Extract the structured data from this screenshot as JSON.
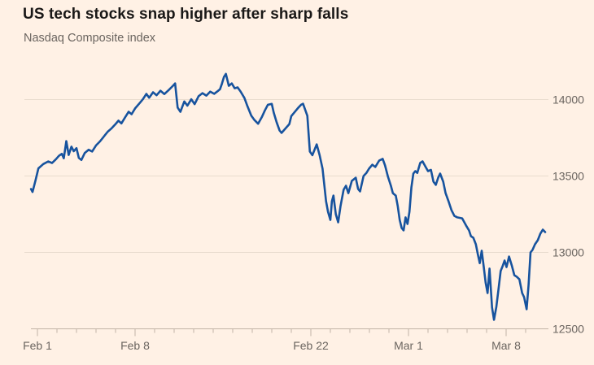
{
  "header": {
    "title": "US tech stocks snap higher after sharp falls",
    "subtitle": "Nasdaq Composite index"
  },
  "colors": {
    "background": "#FFF1E5",
    "line": "#17539E",
    "grid": "#E9DCCE",
    "axis": "#C2B4A6",
    "title_text": "#1A1817",
    "label_text": "#6B6560"
  },
  "chart_data": {
    "type": "line",
    "title": "US tech stocks snap higher after sharp falls",
    "subtitle": "Nasdaq Composite index",
    "legend": "none",
    "grid": "horizontal",
    "x_axis": {
      "unit": "trading-day index from Feb 1",
      "tick_labels": [
        {
          "day": 0,
          "label": "Feb 1"
        },
        {
          "day": 5,
          "label": "Feb 8"
        },
        {
          "day": 14,
          "label": "Feb 22"
        },
        {
          "day": 19,
          "label": "Mar 1"
        },
        {
          "day": 24,
          "label": "Mar 8"
        }
      ],
      "minor_ticks_every_day": 1,
      "day_range": [
        -0.33,
        26
      ]
    },
    "y_axis": {
      "side": "right",
      "ticks": [
        12500,
        13000,
        13500,
        14000
      ],
      "range": [
        12500,
        14200
      ]
    },
    "series": [
      {
        "name": "Nasdaq Composite index",
        "points": [
          [
            -0.33,
            13415
          ],
          [
            -0.25,
            13396
          ],
          [
            -0.1,
            13470
          ],
          [
            0.05,
            13550
          ],
          [
            0.3,
            13578
          ],
          [
            0.55,
            13595
          ],
          [
            0.75,
            13585
          ],
          [
            0.95,
            13610
          ],
          [
            1.1,
            13632
          ],
          [
            1.25,
            13645
          ],
          [
            1.35,
            13616
          ],
          [
            1.48,
            13728
          ],
          [
            1.6,
            13638
          ],
          [
            1.74,
            13692
          ],
          [
            1.86,
            13662
          ],
          [
            2.0,
            13682
          ],
          [
            2.12,
            13618
          ],
          [
            2.25,
            13605
          ],
          [
            2.42,
            13650
          ],
          [
            2.62,
            13672
          ],
          [
            2.8,
            13660
          ],
          [
            3.0,
            13700
          ],
          [
            3.2,
            13726
          ],
          [
            3.4,
            13758
          ],
          [
            3.6,
            13790
          ],
          [
            3.8,
            13812
          ],
          [
            4.0,
            13840
          ],
          [
            4.15,
            13862
          ],
          [
            4.3,
            13844
          ],
          [
            4.5,
            13886
          ],
          [
            4.67,
            13920
          ],
          [
            4.82,
            13904
          ],
          [
            5.0,
            13942
          ],
          [
            5.2,
            13972
          ],
          [
            5.4,
            14002
          ],
          [
            5.58,
            14037
          ],
          [
            5.72,
            14012
          ],
          [
            5.92,
            14048
          ],
          [
            6.1,
            14028
          ],
          [
            6.3,
            14058
          ],
          [
            6.5,
            14036
          ],
          [
            6.72,
            14062
          ],
          [
            6.92,
            14088
          ],
          [
            7.05,
            14106
          ],
          [
            7.18,
            13948
          ],
          [
            7.32,
            13920
          ],
          [
            7.52,
            13988
          ],
          [
            7.68,
            13960
          ],
          [
            7.88,
            14002
          ],
          [
            8.05,
            13970
          ],
          [
            8.25,
            14022
          ],
          [
            8.45,
            14042
          ],
          [
            8.65,
            14026
          ],
          [
            8.85,
            14052
          ],
          [
            9.05,
            14038
          ],
          [
            9.2,
            14052
          ],
          [
            9.35,
            14068
          ],
          [
            9.45,
            14105
          ],
          [
            9.55,
            14148
          ],
          [
            9.65,
            14168
          ],
          [
            9.8,
            14090
          ],
          [
            9.95,
            14106
          ],
          [
            10.1,
            14074
          ],
          [
            10.25,
            14080
          ],
          [
            10.4,
            14053
          ],
          [
            10.6,
            14010
          ],
          [
            10.75,
            13958
          ],
          [
            10.95,
            13895
          ],
          [
            11.1,
            13868
          ],
          [
            11.3,
            13842
          ],
          [
            11.5,
            13888
          ],
          [
            11.65,
            13930
          ],
          [
            11.8,
            13966
          ],
          [
            12.0,
            13972
          ],
          [
            12.1,
            13915
          ],
          [
            12.25,
            13851
          ],
          [
            12.4,
            13798
          ],
          [
            12.5,
            13782
          ],
          [
            12.72,
            13814
          ],
          [
            12.9,
            13840
          ],
          [
            13.0,
            13892
          ],
          [
            13.35,
            13946
          ],
          [
            13.5,
            13966
          ],
          [
            13.6,
            13973
          ],
          [
            13.72,
            13930
          ],
          [
            13.82,
            13894
          ],
          [
            13.95,
            13660
          ],
          [
            14.08,
            13636
          ],
          [
            14.3,
            13707
          ],
          [
            14.45,
            13636
          ],
          [
            14.6,
            13548
          ],
          [
            14.78,
            13335
          ],
          [
            14.88,
            13266
          ],
          [
            15.0,
            13213
          ],
          [
            15.08,
            13335
          ],
          [
            15.16,
            13372
          ],
          [
            15.28,
            13250
          ],
          [
            15.4,
            13197
          ],
          [
            15.52,
            13303
          ],
          [
            15.68,
            13410
          ],
          [
            15.8,
            13436
          ],
          [
            15.92,
            13388
          ],
          [
            16.1,
            13468
          ],
          [
            16.3,
            13489
          ],
          [
            16.42,
            13415
          ],
          [
            16.52,
            13399
          ],
          [
            16.7,
            13500
          ],
          [
            16.85,
            13521
          ],
          [
            16.98,
            13548
          ],
          [
            17.15,
            13574
          ],
          [
            17.3,
            13559
          ],
          [
            17.5,
            13601
          ],
          [
            17.68,
            13612
          ],
          [
            17.8,
            13569
          ],
          [
            17.95,
            13495
          ],
          [
            18.1,
            13436
          ],
          [
            18.2,
            13388
          ],
          [
            18.35,
            13372
          ],
          [
            18.45,
            13303
          ],
          [
            18.55,
            13213
          ],
          [
            18.65,
            13160
          ],
          [
            18.75,
            13144
          ],
          [
            18.85,
            13229
          ],
          [
            18.95,
            13186
          ],
          [
            19.05,
            13266
          ],
          [
            19.15,
            13426
          ],
          [
            19.25,
            13516
          ],
          [
            19.35,
            13532
          ],
          [
            19.45,
            13520
          ],
          [
            19.6,
            13585
          ],
          [
            19.72,
            13596
          ],
          [
            19.88,
            13559
          ],
          [
            20.0,
            13532
          ],
          [
            20.15,
            13540
          ],
          [
            20.28,
            13463
          ],
          [
            20.4,
            13442
          ],
          [
            20.52,
            13489
          ],
          [
            20.62,
            13516
          ],
          [
            20.78,
            13463
          ],
          [
            20.9,
            13388
          ],
          [
            21.05,
            13335
          ],
          [
            21.2,
            13277
          ],
          [
            21.35,
            13239
          ],
          [
            21.5,
            13229
          ],
          [
            21.75,
            13223
          ],
          [
            21.95,
            13176
          ],
          [
            22.1,
            13144
          ],
          [
            22.2,
            13106
          ],
          [
            22.32,
            13096
          ],
          [
            22.45,
            13053
          ],
          [
            22.55,
            12989
          ],
          [
            22.65,
            12930
          ],
          [
            22.75,
            13011
          ],
          [
            22.85,
            12910
          ],
          [
            22.95,
            12803
          ],
          [
            23.05,
            12734
          ],
          [
            23.15,
            12894
          ],
          [
            23.28,
            12640
          ],
          [
            23.38,
            12559
          ],
          [
            23.5,
            12644
          ],
          [
            23.62,
            12771
          ],
          [
            23.72,
            12878
          ],
          [
            23.82,
            12910
          ],
          [
            23.92,
            12947
          ],
          [
            24.02,
            12904
          ],
          [
            24.15,
            12973
          ],
          [
            24.3,
            12910
          ],
          [
            24.42,
            12851
          ],
          [
            24.55,
            12840
          ],
          [
            24.68,
            12824
          ],
          [
            24.82,
            12734
          ],
          [
            24.92,
            12707
          ],
          [
            25.05,
            12628
          ],
          [
            25.15,
            12787
          ],
          [
            25.25,
            13000
          ],
          [
            25.35,
            13016
          ],
          [
            25.48,
            13053
          ],
          [
            25.62,
            13080
          ],
          [
            25.75,
            13122
          ],
          [
            25.88,
            13149
          ],
          [
            26.0,
            13133
          ]
        ]
      }
    ]
  }
}
